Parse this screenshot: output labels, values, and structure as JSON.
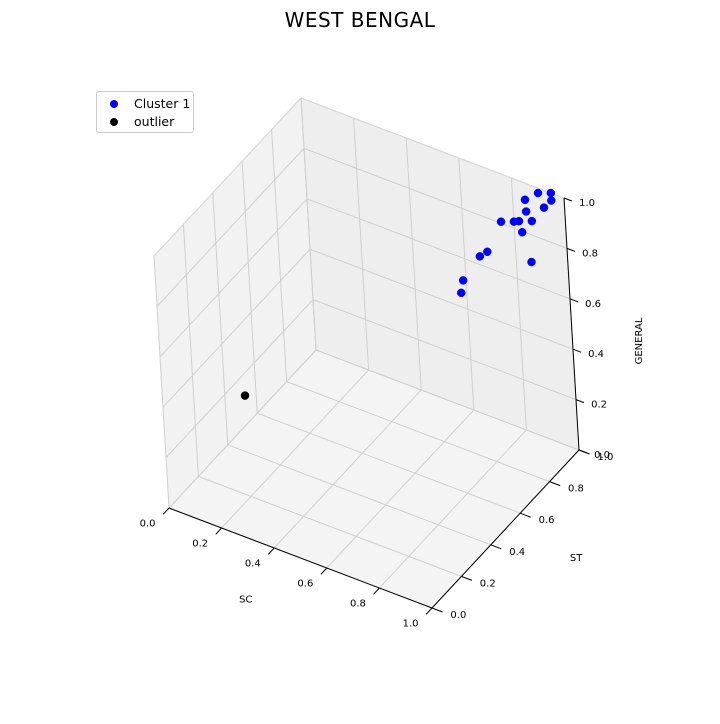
{
  "chart_data": {
    "type": "scatter",
    "projection": "3d",
    "title": "WEST BENGAL",
    "xlabel": "SC",
    "ylabel": "ST",
    "zlabel": "GENERAL",
    "xlim": [
      0,
      1
    ],
    "ylim": [
      0,
      1
    ],
    "zlim": [
      0,
      1
    ],
    "xticks": [
      "0.0",
      "0.2",
      "0.4",
      "0.6",
      "0.8",
      "1.0"
    ],
    "yticks": [
      "0.0",
      "0.2",
      "0.4",
      "0.6",
      "0.8",
      "1.0"
    ],
    "zticks": [
      "0.0",
      "0.2",
      "0.4",
      "0.6",
      "0.8",
      "1.0"
    ],
    "grid": true,
    "legend_position": "upper-left",
    "series": [
      {
        "name": "Cluster 1",
        "color": "#0000ff",
        "points": [
          [
            0.95,
            1.0,
            0.97
          ],
          [
            0.9,
            0.95,
            0.9
          ],
          [
            0.92,
            1.0,
            0.93
          ],
          [
            0.95,
            1.0,
            1.0
          ],
          [
            0.95,
            0.85,
            0.82
          ],
          [
            0.85,
            0.95,
            0.88
          ],
          [
            0.83,
            0.95,
            0.87
          ],
          [
            0.86,
            0.98,
            0.95
          ],
          [
            0.88,
            0.95,
            0.93
          ],
          [
            0.9,
            1.0,
            0.98
          ],
          [
            0.78,
            0.95,
            0.85
          ],
          [
            0.75,
            0.9,
            0.75
          ],
          [
            0.72,
            0.9,
            0.72
          ],
          [
            0.68,
            0.85,
            0.64
          ],
          [
            0.7,
            0.8,
            0.63
          ],
          [
            0.86,
            0.95,
            0.84
          ]
        ]
      },
      {
        "name": "outlier",
        "color": "#000000",
        "points": [
          [
            0.2,
            0.2,
            0.4
          ]
        ]
      }
    ]
  }
}
